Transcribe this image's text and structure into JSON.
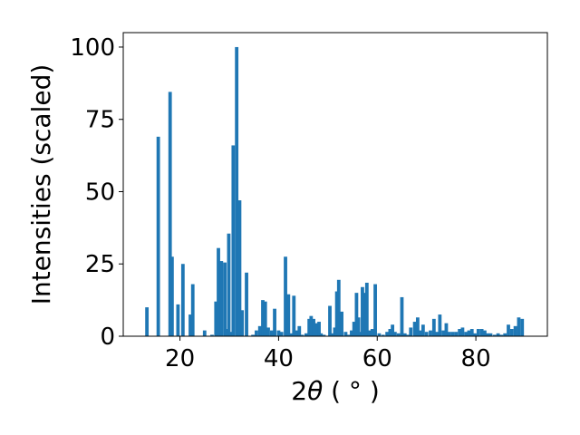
{
  "chart_data": {
    "type": "bar",
    "xlabel_prefix": "2",
    "xlabel_theta": "θ",
    "xlabel_unit": " ( ° )",
    "ylabel": "Intensities (scaled)",
    "xlim": [
      8.5,
      94.5
    ],
    "ylim": [
      0,
      105
    ],
    "x_ticks": [
      20,
      40,
      60,
      80
    ],
    "y_ticks": [
      0,
      25,
      50,
      75,
      100
    ],
    "bar_color": "#1f77b4",
    "bar_width": 0.7,
    "x": [
      13.3,
      15.6,
      18.0,
      18.4,
      19.6,
      20.6,
      22.1,
      22.6,
      25.0,
      26.5,
      27.3,
      27.8,
      28.4,
      29.1,
      29.4,
      29.9,
      30.3,
      30.8,
      31.5,
      32.1,
      32.6,
      33.5,
      34.8,
      35.5,
      36.2,
      36.8,
      37.3,
      37.9,
      38.6,
      39.2,
      40.0,
      40.6,
      41.4,
      42.0,
      42.6,
      43.1,
      43.6,
      44.2,
      44.8,
      45.6,
      46.2,
      46.6,
      47.1,
      47.6,
      48.2,
      48.6,
      49.2,
      50.4,
      50.8,
      51.4,
      51.8,
      52.2,
      52.8,
      53.6,
      54.2,
      54.8,
      55.3,
      55.8,
      56.2,
      56.6,
      57.0,
      57.5,
      57.9,
      58.4,
      59.0,
      59.6,
      60.4,
      61.2,
      62.0,
      62.6,
      63.1,
      63.6,
      64.3,
      65.0,
      65.6,
      66.2,
      66.8,
      67.6,
      68.2,
      68.7,
      69.3,
      70.0,
      70.8,
      71.5,
      72.1,
      72.7,
      73.4,
      74.0,
      74.6,
      75.3,
      76.0,
      76.7,
      77.3,
      78.0,
      78.6,
      79.2,
      79.8,
      80.5,
      81.2,
      81.8,
      82.4,
      83.0,
      83.8,
      84.5,
      85.2,
      85.9,
      86.6,
      87.3,
      88.0,
      88.7,
      89.4
    ],
    "values": [
      10,
      69,
      84.5,
      27.5,
      11,
      25,
      7.5,
      18,
      2,
      0.5,
      12,
      30.5,
      26,
      25.5,
      2.5,
      35.5,
      1.5,
      66,
      100,
      47,
      9,
      22,
      0.5,
      2,
      3.5,
      12.5,
      12,
      3,
      2,
      9.5,
      2,
      1.5,
      27.5,
      14.5,
      1,
      14,
      2,
      3.5,
      0.5,
      1,
      6,
      7,
      6,
      4.5,
      5,
      1,
      0.5,
      10.5,
      1,
      3,
      15.5,
      19.5,
      8.5,
      1.5,
      0.5,
      2,
      5,
      15,
      6.5,
      1.5,
      17,
      15,
      18.5,
      2,
      2.5,
      18,
      1,
      0.5,
      1.5,
      2.5,
      4,
      1.5,
      1,
      13.5,
      1,
      0.5,
      3,
      5,
      6.5,
      2,
      4,
      1.5,
      2,
      6,
      1.5,
      7.5,
      2,
      4.5,
      1.5,
      1.5,
      1.5,
      2.5,
      3,
      1.5,
      2,
      2.5,
      1,
      2.5,
      2.5,
      2,
      1,
      1,
      0.5,
      1,
      0.5,
      1,
      4,
      2.5,
      3.5,
      6.5,
      6
    ]
  }
}
